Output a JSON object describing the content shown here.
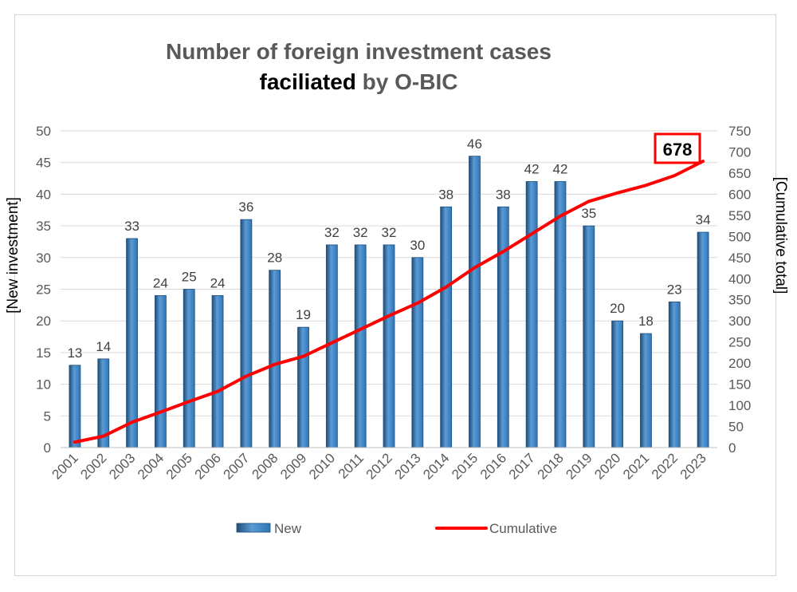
{
  "chart_data": {
    "type": "bar",
    "title_line1": "Number of foreign investment cases",
    "title_line2_emphasis": "faciliated",
    "title_line2_rest": " by O-BIC",
    "ylabel_left": "[New investment]",
    "ylabel_right": "[Cumulative total]",
    "ylim_left": [
      0,
      50
    ],
    "ylim_right": [
      0,
      750
    ],
    "grid": true,
    "legend_placement": "bottom",
    "categories": [
      "2001",
      "2002",
      "2003",
      "2004",
      "2005",
      "2006",
      "2007",
      "2008",
      "2009",
      "2010",
      "2011",
      "2012",
      "2013",
      "2014",
      "2015",
      "2016",
      "2017",
      "2018",
      "2019",
      "2020",
      "2021",
      "2022",
      "2023"
    ],
    "series": [
      {
        "name": "New",
        "type": "bar",
        "axis": "left",
        "color": "#2e75b6",
        "values": [
          13,
          14,
          33,
          24,
          25,
          24,
          36,
          28,
          19,
          32,
          32,
          32,
          30,
          38,
          46,
          38,
          42,
          42,
          35,
          20,
          18,
          23,
          34
        ]
      },
      {
        "name": "Cumulative",
        "type": "line",
        "axis": "right",
        "color": "#ff0000",
        "values": [
          13,
          27,
          60,
          84,
          109,
          133,
          169,
          197,
          216,
          248,
          280,
          312,
          342,
          380,
          426,
          464,
          506,
          548,
          583,
          603,
          621,
          644,
          678
        ]
      }
    ],
    "annotation": {
      "text": "678",
      "target": "Cumulative 2023",
      "box_color": "#ff0000"
    }
  }
}
